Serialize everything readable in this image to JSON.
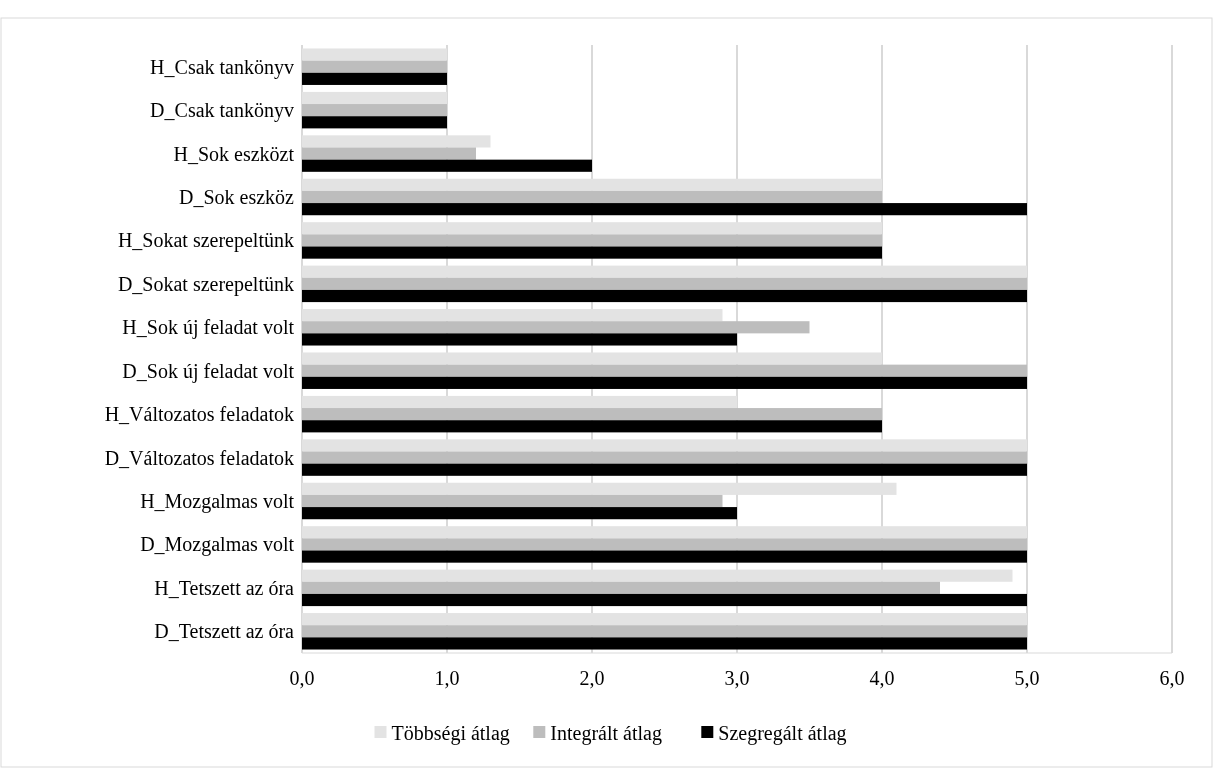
{
  "chart_data": {
    "type": "bar",
    "orientation": "horizontal",
    "categories": [
      "H_Csak tankönyv",
      "D_Csak tankönyv",
      "H_Sok eszközt",
      "D_Sok eszköz",
      "H_Sokat szerepeltünk",
      "D_Sokat szerepeltünk",
      "H_Sok új feladat volt",
      "D_Sok új feladat volt",
      "H_Változatos feladatok",
      "D_Változatos feladatok",
      "H_Mozgalmas volt",
      "D_Mozgalmas volt",
      "H_Tetszett az óra",
      "D_Tetszett az óra"
    ],
    "series": [
      {
        "name": "Többségi átlag",
        "color": "#e3e3e3",
        "values": [
          1,
          1,
          1.3,
          4,
          4,
          5,
          2.9,
          4,
          3,
          5,
          4.1,
          5,
          4.9,
          5
        ]
      },
      {
        "name": "Integrált átlag",
        "color": "#bdbdbd",
        "values": [
          1,
          1,
          1.2,
          4,
          4,
          5,
          3.5,
          5,
          4,
          5,
          2.9,
          5,
          4.4,
          5
        ]
      },
      {
        "name": "Szegregált átlag",
        "color": "#000000",
        "values": [
          1,
          1,
          2,
          5,
          4,
          5,
          3,
          5,
          4,
          5,
          3,
          5,
          5,
          5
        ]
      }
    ],
    "xlim": [
      0,
      6
    ],
    "xticks": [
      {
        "value": 0,
        "label": "0,0"
      },
      {
        "value": 1,
        "label": "1,0"
      },
      {
        "value": 2,
        "label": "2,0"
      },
      {
        "value": 3,
        "label": "3,0"
      },
      {
        "value": 4,
        "label": "4,0"
      },
      {
        "value": 5,
        "label": "5,0"
      },
      {
        "value": 6,
        "label": "6,0"
      }
    ],
    "grid": "x",
    "legend": "bottom"
  }
}
